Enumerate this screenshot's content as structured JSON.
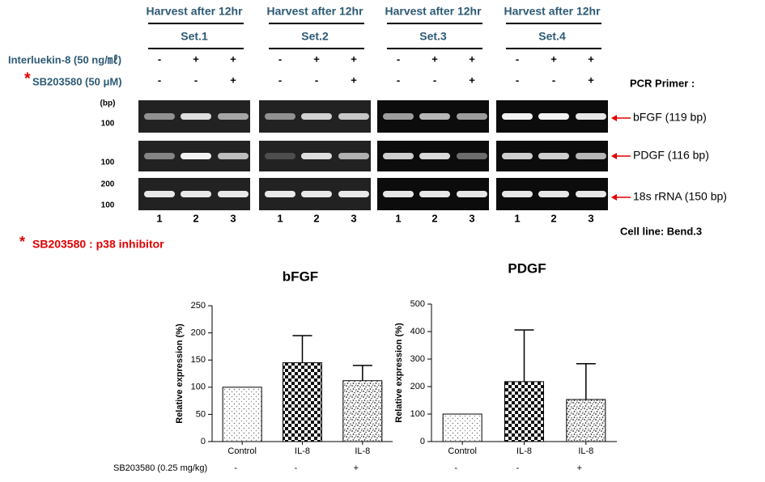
{
  "gel": {
    "harvest_labels": [
      "Harvest after 12hr",
      "Harvest after 12hr",
      "Harvest after 12hr",
      "Harvest after 12hr"
    ],
    "set_labels": [
      "Set.1",
      "Set.2",
      "Set.3",
      "Set.4"
    ],
    "treatments": [
      {
        "label": "Interluekin-8 (50 ng/㎖)",
        "signs": [
          [
            "-",
            "+",
            "+"
          ],
          [
            "-",
            "+",
            "+"
          ],
          [
            "-",
            "+",
            "+"
          ],
          [
            "-",
            "+",
            "+"
          ]
        ]
      },
      {
        "marker": "*",
        "label": "SB203580 (50 μM)",
        "signs": [
          [
            "-",
            "-",
            "+"
          ],
          [
            "-",
            "-",
            "+"
          ],
          [
            "-",
            "-",
            "+"
          ],
          [
            "-",
            "-",
            "+"
          ]
        ]
      }
    ],
    "primer_heading": "PCR Primer :",
    "bp_unit": "(bp)",
    "rows": [
      {
        "label": "bFGF (119 bp)",
        "markers": [
          "100"
        ]
      },
      {
        "label": "PDGF (116 bp)",
        "markers": [
          "100"
        ]
      },
      {
        "label": "18s rRNA (150 bp)",
        "markers": [
          "200",
          "100"
        ]
      }
    ],
    "lanes": [
      "1",
      "2",
      "3"
    ],
    "cell_line": "Cell line: Bend.3",
    "footnote": {
      "marker": "*",
      "text": "SB203580 : p38 inhibitor"
    }
  },
  "treatment_label": "SB203580 (0.25 mg/kg)",
  "chart_data": [
    {
      "type": "bar",
      "title": "bFGF",
      "y_label": "Relative expression (%)",
      "categories": [
        "Control",
        "IL-8",
        "IL-8"
      ],
      "values": [
        100,
        145,
        112
      ],
      "errors": [
        null,
        50,
        28
      ],
      "ylim": [
        0,
        250
      ],
      "yticks": [
        0,
        50,
        100,
        150,
        200,
        250
      ],
      "treatment_signs": [
        "-",
        "-",
        "+"
      ]
    },
    {
      "type": "bar",
      "title": "PDGF",
      "y_label": "Relative expression (%)",
      "categories": [
        "Control",
        "IL-8",
        "IL-8"
      ],
      "values": [
        100,
        218,
        153
      ],
      "errors": [
        null,
        188,
        130
      ],
      "ylim": [
        0,
        500
      ],
      "yticks": [
        0,
        100,
        200,
        300,
        400,
        500
      ],
      "treatment_signs": [
        "-",
        "-",
        "+"
      ]
    }
  ]
}
